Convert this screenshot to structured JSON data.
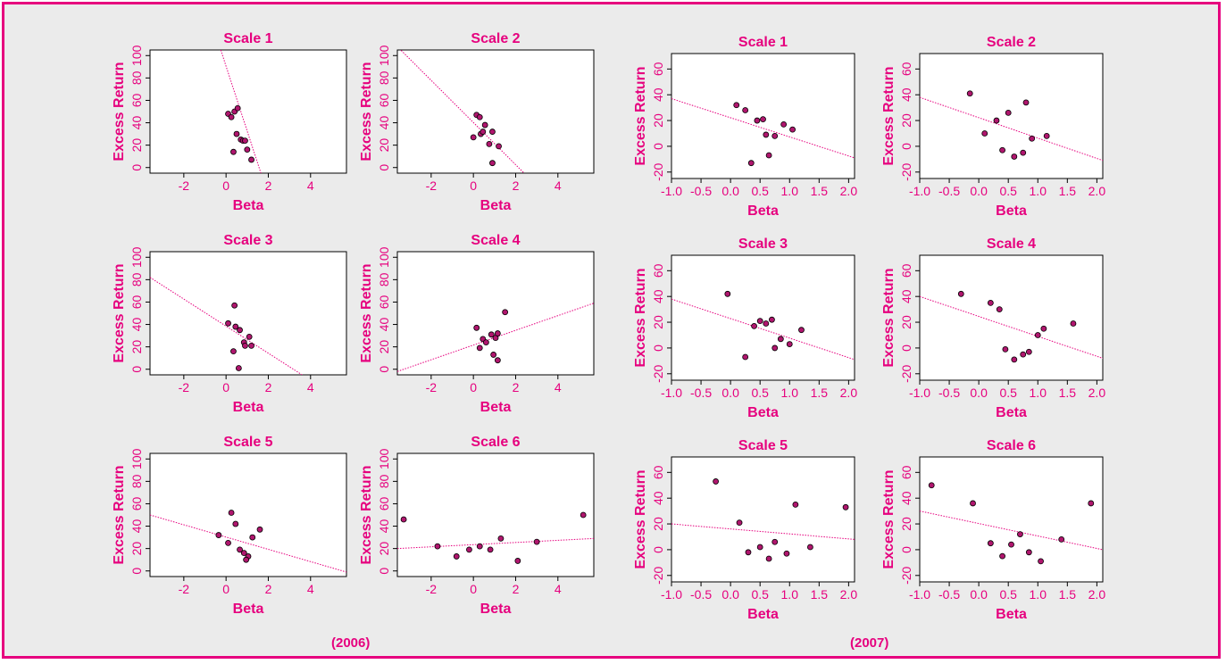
{
  "captions": {
    "left": "(2006)",
    "right": "(2007)"
  },
  "colors": {
    "accent": "#e6007e",
    "panel_bg": "#ebebeb",
    "plot_bg": "#ffffff",
    "point": "#b0166e"
  },
  "chart_data": [
    {
      "type": "scatter",
      "title": "Scale 1",
      "xlabel": "Beta",
      "ylabel": "Excess Return",
      "xlim": [
        -3.6,
        5.7
      ],
      "ylim": [
        -5,
        105
      ],
      "xticks": [
        -2,
        0,
        2,
        4
      ],
      "yticks": [
        0,
        20,
        40,
        60,
        80,
        100
      ],
      "points": [
        [
          0.1,
          48
        ],
        [
          0.25,
          45
        ],
        [
          0.4,
          50
        ],
        [
          0.55,
          53
        ],
        [
          0.5,
          30
        ],
        [
          0.7,
          25
        ],
        [
          0.8,
          24
        ],
        [
          0.9,
          24
        ],
        [
          0.35,
          14
        ],
        [
          1.0,
          16
        ],
        [
          1.2,
          7
        ]
      ],
      "fit_line": [
        [
          -0.25,
          105
        ],
        [
          1.65,
          -5
        ]
      ]
    },
    {
      "type": "scatter",
      "title": "Scale 2",
      "xlabel": "Beta",
      "ylabel": "Excess Return",
      "xlim": [
        -3.6,
        5.7
      ],
      "ylim": [
        -5,
        105
      ],
      "xticks": [
        -2,
        0,
        2,
        4
      ],
      "yticks": [
        0,
        20,
        40,
        60,
        80,
        100
      ],
      "points": [
        [
          0.15,
          47
        ],
        [
          0.3,
          45
        ],
        [
          0.55,
          38
        ],
        [
          0.35,
          30
        ],
        [
          0.45,
          32
        ],
        [
          0.9,
          32
        ],
        [
          0.0,
          27
        ],
        [
          0.75,
          21
        ],
        [
          1.2,
          19
        ],
        [
          0.9,
          4
        ]
      ],
      "fit_line": [
        [
          -3.6,
          108
        ],
        [
          2.4,
          -5
        ]
      ]
    },
    {
      "type": "scatter",
      "title": "Scale 1",
      "xlabel": "Beta",
      "ylabel": "Excess Return",
      "xlim": [
        -1.0,
        2.1
      ],
      "ylim": [
        -25,
        72
      ],
      "xticks": [
        -1.0,
        -0.5,
        0.0,
        0.5,
        1.0,
        1.5,
        2.0
      ],
      "yticks": [
        -20,
        0,
        20,
        40,
        60
      ],
      "points": [
        [
          0.1,
          32
        ],
        [
          0.25,
          28
        ],
        [
          0.45,
          20
        ],
        [
          0.55,
          21
        ],
        [
          0.9,
          17
        ],
        [
          1.05,
          13
        ],
        [
          0.6,
          9
        ],
        [
          0.75,
          8
        ],
        [
          0.65,
          -7
        ],
        [
          0.35,
          -13
        ]
      ],
      "fit_line": [
        [
          -1.0,
          37
        ],
        [
          2.1,
          -9
        ]
      ]
    },
    {
      "type": "scatter",
      "title": "Scale 2",
      "xlabel": "Beta",
      "ylabel": "Excess Return",
      "xlim": [
        -1.0,
        2.1
      ],
      "ylim": [
        -25,
        72
      ],
      "xticks": [
        -1.0,
        -0.5,
        0.0,
        0.5,
        1.0,
        1.5,
        2.0
      ],
      "yticks": [
        -20,
        0,
        20,
        40,
        60
      ],
      "points": [
        [
          -0.15,
          41
        ],
        [
          0.3,
          20
        ],
        [
          0.5,
          26
        ],
        [
          0.8,
          34
        ],
        [
          0.1,
          10
        ],
        [
          0.9,
          6
        ],
        [
          1.15,
          8
        ],
        [
          0.4,
          -3
        ],
        [
          0.75,
          -5
        ],
        [
          0.6,
          -8
        ]
      ],
      "fit_line": [
        [
          -1.0,
          38
        ],
        [
          2.1,
          -11
        ]
      ]
    },
    {
      "type": "scatter",
      "title": "Scale 3",
      "xlabel": "Beta",
      "ylabel": "Excess Return",
      "xlim": [
        -3.6,
        5.7
      ],
      "ylim": [
        -5,
        105
      ],
      "xticks": [
        -2,
        0,
        2,
        4
      ],
      "yticks": [
        0,
        20,
        40,
        60,
        80,
        100
      ],
      "points": [
        [
          0.4,
          57
        ],
        [
          0.1,
          41
        ],
        [
          0.45,
          38
        ],
        [
          0.65,
          35
        ],
        [
          1.1,
          29
        ],
        [
          0.85,
          24
        ],
        [
          0.9,
          21
        ],
        [
          1.2,
          21
        ],
        [
          0.35,
          16
        ],
        [
          0.6,
          1
        ]
      ],
      "fit_line": [
        [
          -3.6,
          82
        ],
        [
          3.6,
          -5
        ]
      ]
    },
    {
      "type": "scatter",
      "title": "Scale 4",
      "xlabel": "Beta",
      "ylabel": "Excess Return",
      "xlim": [
        -3.6,
        5.7
      ],
      "ylim": [
        -5,
        105
      ],
      "xticks": [
        -2,
        0,
        2,
        4
      ],
      "yticks": [
        0,
        20,
        40,
        60,
        80,
        100
      ],
      "points": [
        [
          0.15,
          37
        ],
        [
          1.5,
          51
        ],
        [
          0.45,
          27
        ],
        [
          0.6,
          24
        ],
        [
          0.85,
          31
        ],
        [
          1.05,
          28
        ],
        [
          1.15,
          32
        ],
        [
          0.3,
          19
        ],
        [
          0.95,
          13
        ],
        [
          1.15,
          8
        ]
      ],
      "fit_line": [
        [
          -3.6,
          -2
        ],
        [
          5.7,
          59
        ]
      ]
    },
    {
      "type": "scatter",
      "title": "Scale 3",
      "xlabel": "Beta",
      "ylabel": "Excess Return",
      "xlim": [
        -1.0,
        2.1
      ],
      "ylim": [
        -25,
        72
      ],
      "xticks": [
        -1.0,
        -0.5,
        0.0,
        0.5,
        1.0,
        1.5,
        2.0
      ],
      "yticks": [
        -20,
        0,
        20,
        40,
        60
      ],
      "points": [
        [
          -0.05,
          42
        ],
        [
          0.5,
          21
        ],
        [
          0.6,
          19
        ],
        [
          0.7,
          22
        ],
        [
          0.4,
          17
        ],
        [
          1.2,
          14
        ],
        [
          0.85,
          7
        ],
        [
          1.0,
          3
        ],
        [
          0.75,
          0
        ],
        [
          0.25,
          -7
        ]
      ],
      "fit_line": [
        [
          -1.0,
          38
        ],
        [
          2.1,
          -9
        ]
      ]
    },
    {
      "type": "scatter",
      "title": "Scale 4",
      "xlabel": "Beta",
      "ylabel": "Excess Return",
      "xlim": [
        -1.0,
        2.1
      ],
      "ylim": [
        -25,
        72
      ],
      "xticks": [
        -1.0,
        -0.5,
        0.0,
        0.5,
        1.0,
        1.5,
        2.0
      ],
      "yticks": [
        -20,
        0,
        20,
        40,
        60
      ],
      "points": [
        [
          -0.3,
          42
        ],
        [
          0.2,
          35
        ],
        [
          0.35,
          30
        ],
        [
          1.6,
          19
        ],
        [
          1.1,
          15
        ],
        [
          1.0,
          10
        ],
        [
          0.45,
          -1
        ],
        [
          0.85,
          -3
        ],
        [
          0.75,
          -5
        ],
        [
          0.6,
          -9
        ]
      ],
      "fit_line": [
        [
          -1.0,
          40
        ],
        [
          2.1,
          -8
        ]
      ]
    },
    {
      "type": "scatter",
      "title": "Scale 5",
      "xlabel": "Beta",
      "ylabel": "Excess Return",
      "xlim": [
        -3.6,
        5.7
      ],
      "ylim": [
        -5,
        105
      ],
      "xticks": [
        -2,
        0,
        2,
        4
      ],
      "yticks": [
        0,
        20,
        40,
        60,
        80,
        100
      ],
      "points": [
        [
          0.25,
          52
        ],
        [
          0.45,
          42
        ],
        [
          1.6,
          37
        ],
        [
          -0.35,
          32
        ],
        [
          1.25,
          30
        ],
        [
          0.1,
          25
        ],
        [
          0.65,
          19
        ],
        [
          0.85,
          16
        ],
        [
          1.05,
          13
        ],
        [
          0.95,
          10
        ]
      ],
      "fit_line": [
        [
          -3.6,
          50
        ],
        [
          5.7,
          -1
        ]
      ]
    },
    {
      "type": "scatter",
      "title": "Scale 6",
      "xlabel": "Beta",
      "ylabel": "Excess Return",
      "xlim": [
        -3.6,
        5.7
      ],
      "ylim": [
        -5,
        105
      ],
      "xticks": [
        -2,
        0,
        2,
        4
      ],
      "yticks": [
        0,
        20,
        40,
        60,
        80,
        100
      ],
      "points": [
        [
          -3.3,
          46
        ],
        [
          5.2,
          50
        ],
        [
          1.3,
          29
        ],
        [
          3.0,
          26
        ],
        [
          -1.7,
          22
        ],
        [
          0.3,
          22
        ],
        [
          -0.2,
          19
        ],
        [
          0.8,
          19
        ],
        [
          -0.8,
          13
        ],
        [
          2.1,
          9
        ]
      ],
      "fit_line": [
        [
          -3.6,
          20
        ],
        [
          5.7,
          29
        ]
      ]
    },
    {
      "type": "scatter",
      "title": "Scale 5",
      "xlabel": "Beta",
      "ylabel": "Excess Return",
      "xlim": [
        -1.0,
        2.1
      ],
      "ylim": [
        -25,
        72
      ],
      "xticks": [
        -1.0,
        -0.5,
        0.0,
        0.5,
        1.0,
        1.5,
        2.0
      ],
      "yticks": [
        -20,
        0,
        20,
        40,
        60
      ],
      "points": [
        [
          -0.25,
          53
        ],
        [
          0.15,
          21
        ],
        [
          1.1,
          35
        ],
        [
          1.95,
          33
        ],
        [
          0.75,
          6
        ],
        [
          0.5,
          2
        ],
        [
          1.35,
          2
        ],
        [
          0.3,
          -2
        ],
        [
          0.95,
          -3
        ],
        [
          0.65,
          -7
        ]
      ],
      "fit_line": [
        [
          -1.0,
          20
        ],
        [
          2.1,
          8
        ]
      ]
    },
    {
      "type": "scatter",
      "title": "Scale 6",
      "xlabel": "Beta",
      "ylabel": "Excess Return",
      "xlim": [
        -1.0,
        2.1
      ],
      "ylim": [
        -25,
        72
      ],
      "xticks": [
        -1.0,
        -0.5,
        0.0,
        0.5,
        1.0,
        1.5,
        2.0
      ],
      "yticks": [
        -20,
        0,
        20,
        40,
        60
      ],
      "points": [
        [
          -0.8,
          50
        ],
        [
          -0.1,
          36
        ],
        [
          1.9,
          36
        ],
        [
          0.7,
          12
        ],
        [
          1.4,
          8
        ],
        [
          0.2,
          5
        ],
        [
          0.55,
          4
        ],
        [
          0.4,
          -5
        ],
        [
          0.85,
          -2
        ],
        [
          1.05,
          -9
        ]
      ],
      "fit_line": [
        [
          -1.0,
          30
        ],
        [
          2.1,
          0
        ]
      ]
    }
  ]
}
